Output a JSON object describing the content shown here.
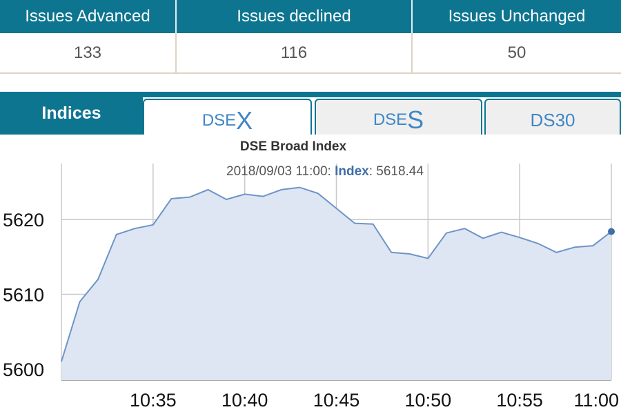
{
  "issues": {
    "headers": [
      "Issues Advanced",
      "Issues declined",
      "Issues Unchanged"
    ],
    "values": [
      "133",
      "116",
      "50"
    ]
  },
  "tabs": {
    "indices_label": "Indices",
    "dsex_small": "DSE",
    "dsex_big": "X",
    "dses_small": "DSE",
    "dses_big": "S",
    "ds30": "DS30",
    "active": "DSEX"
  },
  "tooltip": {
    "time": "2018/09/03 11:00",
    "key": "Index",
    "value": "5618.44"
  },
  "colors": {
    "header_bg": "#0e7590",
    "tab_text": "#3f86c6",
    "line": "#6d94c7",
    "fill": "#dde6f2"
  },
  "chart_data": {
    "type": "area",
    "title": "DSE Broad Index",
    "xlabel": "",
    "ylabel": "",
    "x": [
      "10:30",
      "10:31",
      "10:32",
      "10:33",
      "10:34",
      "10:35",
      "10:36",
      "10:37",
      "10:38",
      "10:39",
      "10:40",
      "10:41",
      "10:42",
      "10:43",
      "10:44",
      "10:45",
      "10:46",
      "10:47",
      "10:48",
      "10:49",
      "10:50",
      "10:51",
      "10:52",
      "10:53",
      "10:54",
      "10:55",
      "10:56",
      "10:57",
      "10:58",
      "10:59",
      "11:00"
    ],
    "values": [
      5601.0,
      5609.0,
      5612.0,
      5618.0,
      5618.8,
      5619.3,
      5622.8,
      5623.0,
      5624.0,
      5622.7,
      5623.4,
      5623.1,
      5624.0,
      5624.3,
      5623.5,
      5621.5,
      5619.5,
      5619.4,
      5615.6,
      5615.4,
      5614.8,
      5618.2,
      5618.8,
      5617.5,
      5618.3,
      5617.6,
      5616.8,
      5615.6,
      5616.3,
      5616.5,
      5618.4
    ],
    "x_ticks": [
      "10:35",
      "10:40",
      "10:45",
      "10:50",
      "10:55",
      "11:00"
    ],
    "y_ticks": [
      5600,
      5610,
      5620
    ],
    "ylim": [
      5598.5,
      5627.5
    ],
    "grid": true,
    "highlight_index": 30
  }
}
